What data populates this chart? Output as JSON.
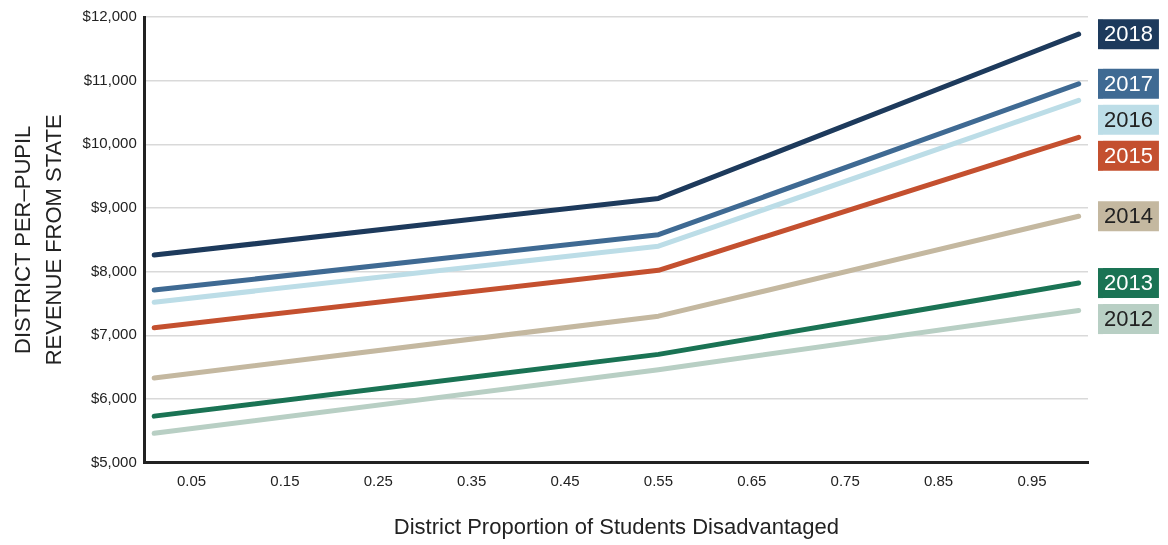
{
  "chart_data": {
    "type": "line",
    "xlabel": "District Proportion of Students Disadvantaged",
    "ylabel": "DISTRICT PER–PUPIL\nREVENUE FROM STATE",
    "x": [
      0.01,
      0.55,
      1.0
    ],
    "series": [
      {
        "name": "2018",
        "color": "#1d3a5c",
        "values": [
          8260,
          9150,
          11730
        ]
      },
      {
        "name": "2017",
        "color": "#3f6a93",
        "values": [
          7710,
          8580,
          10950
        ]
      },
      {
        "name": "2016",
        "color": "#bcdde7",
        "values": [
          7520,
          8400,
          10690
        ]
      },
      {
        "name": "2015",
        "color": "#c4502f",
        "values": [
          7120,
          8020,
          10110
        ]
      },
      {
        "name": "2014",
        "color": "#c4b8a0",
        "values": [
          6330,
          7300,
          8870
        ]
      },
      {
        "name": "2013",
        "color": "#1a7354",
        "values": [
          5730,
          6700,
          7820
        ]
      },
      {
        "name": "2012",
        "color": "#b8cfc4",
        "values": [
          5460,
          6460,
          7390
        ]
      }
    ],
    "xlim": [
      0,
      1.01
    ],
    "xticks": [
      0.05,
      0.15,
      0.25,
      0.35,
      0.45,
      0.55,
      0.65,
      0.75,
      0.85,
      0.95
    ],
    "ylim": [
      5000,
      12000
    ],
    "yticks": [
      {
        "value": 5000,
        "label": "$5,000"
      },
      {
        "value": 6000,
        "label": "$6,000"
      },
      {
        "value": 7000,
        "label": "$7,000"
      },
      {
        "value": 8000,
        "label": "$8,000"
      },
      {
        "value": 9000,
        "label": "$9,000"
      },
      {
        "value": 10000,
        "label": "$10,000"
      },
      {
        "value": 11000,
        "label": "$11,000"
      },
      {
        "value": 12000,
        "label": "$12,000"
      }
    ],
    "grid": "y",
    "legend": "right",
    "marker": "none",
    "line_style": "solid"
  }
}
